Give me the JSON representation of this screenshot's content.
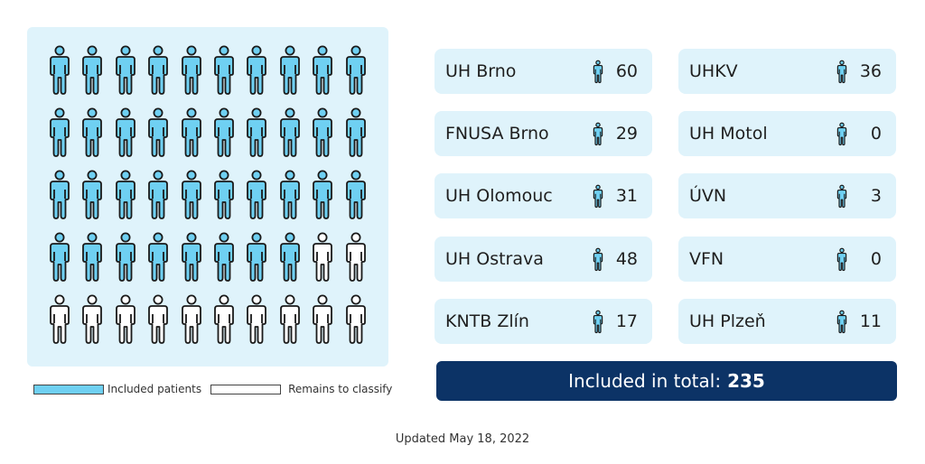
{
  "colors": {
    "included": "#6fd0f2",
    "remaining": "#ffffff",
    "outline": "#1a1a1a",
    "panel": "#dff3fb",
    "total_bg": "#0c3366"
  },
  "pictogram": {
    "total_icons": 50,
    "included_icons": 38,
    "icon": "person-icon"
  },
  "legend": {
    "included_label": "Included patients",
    "remaining_label": "Remains to classify"
  },
  "hospitals": [
    {
      "name": "UH Brno",
      "value": "60"
    },
    {
      "name": "UHKV",
      "value": "36"
    },
    {
      "name": "FNUSA Brno",
      "value": "29"
    },
    {
      "name": "UH Motol",
      "value": "0"
    },
    {
      "name": "UH Olomouc",
      "value": "31"
    },
    {
      "name": "ÚVN",
      "value": "3"
    },
    {
      "name": "UH Ostrava",
      "value": "48"
    },
    {
      "name": "VFN",
      "value": "0"
    },
    {
      "name": "KNTB Zlín",
      "value": "17"
    },
    {
      "name": "UH Plzeň",
      "value": "11"
    }
  ],
  "total": {
    "label": "Included in total:",
    "value": "235"
  },
  "updated": "Updated May 18, 2022"
}
